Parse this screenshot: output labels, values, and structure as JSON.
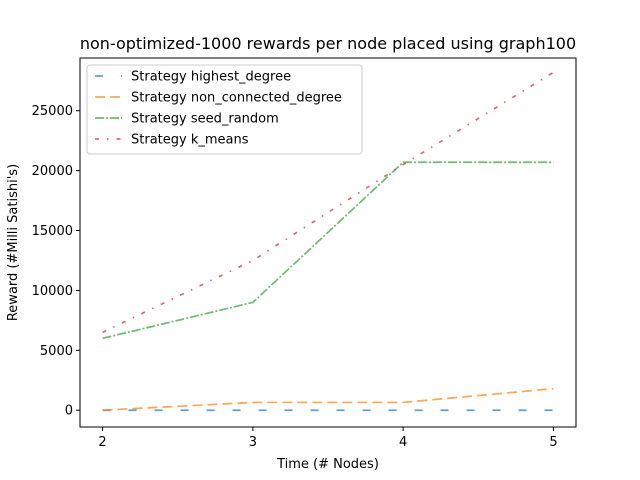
{
  "chart_data": {
    "type": "line",
    "title": "non-optimized-1000 rewards per node placed using graph100",
    "xlabel": "Time (# Nodes)",
    "ylabel": "Reward (#Milli Satishi's)",
    "x": [
      2,
      3,
      4,
      5
    ],
    "xlim": [
      1.85,
      5.15
    ],
    "ylim": [
      -1400,
      29400
    ],
    "xticks": [
      2,
      3,
      4,
      5
    ],
    "yticks": [
      0,
      5000,
      10000,
      15000,
      20000,
      25000
    ],
    "grid": false,
    "legend_position": "top-left",
    "series": [
      {
        "name": "Strategy highest_degree",
        "values": [
          0,
          0,
          0,
          0
        ],
        "color": "#1f77b4",
        "dash": "dashed-sparse"
      },
      {
        "name": "Strategy non_connected_degree",
        "values": [
          0,
          650,
          650,
          1800
        ],
        "color": "#ff7f0e",
        "dash": "dashed"
      },
      {
        "name": "Strategy seed_random",
        "values": [
          6000,
          9000,
          20700,
          20700
        ],
        "color": "#2ca02c",
        "dash": "dashdot"
      },
      {
        "name": "Strategy k_means",
        "values": [
          6500,
          12500,
          20500,
          28200
        ],
        "color": "#d62728",
        "dash": "dotdash-sparse"
      }
    ]
  }
}
